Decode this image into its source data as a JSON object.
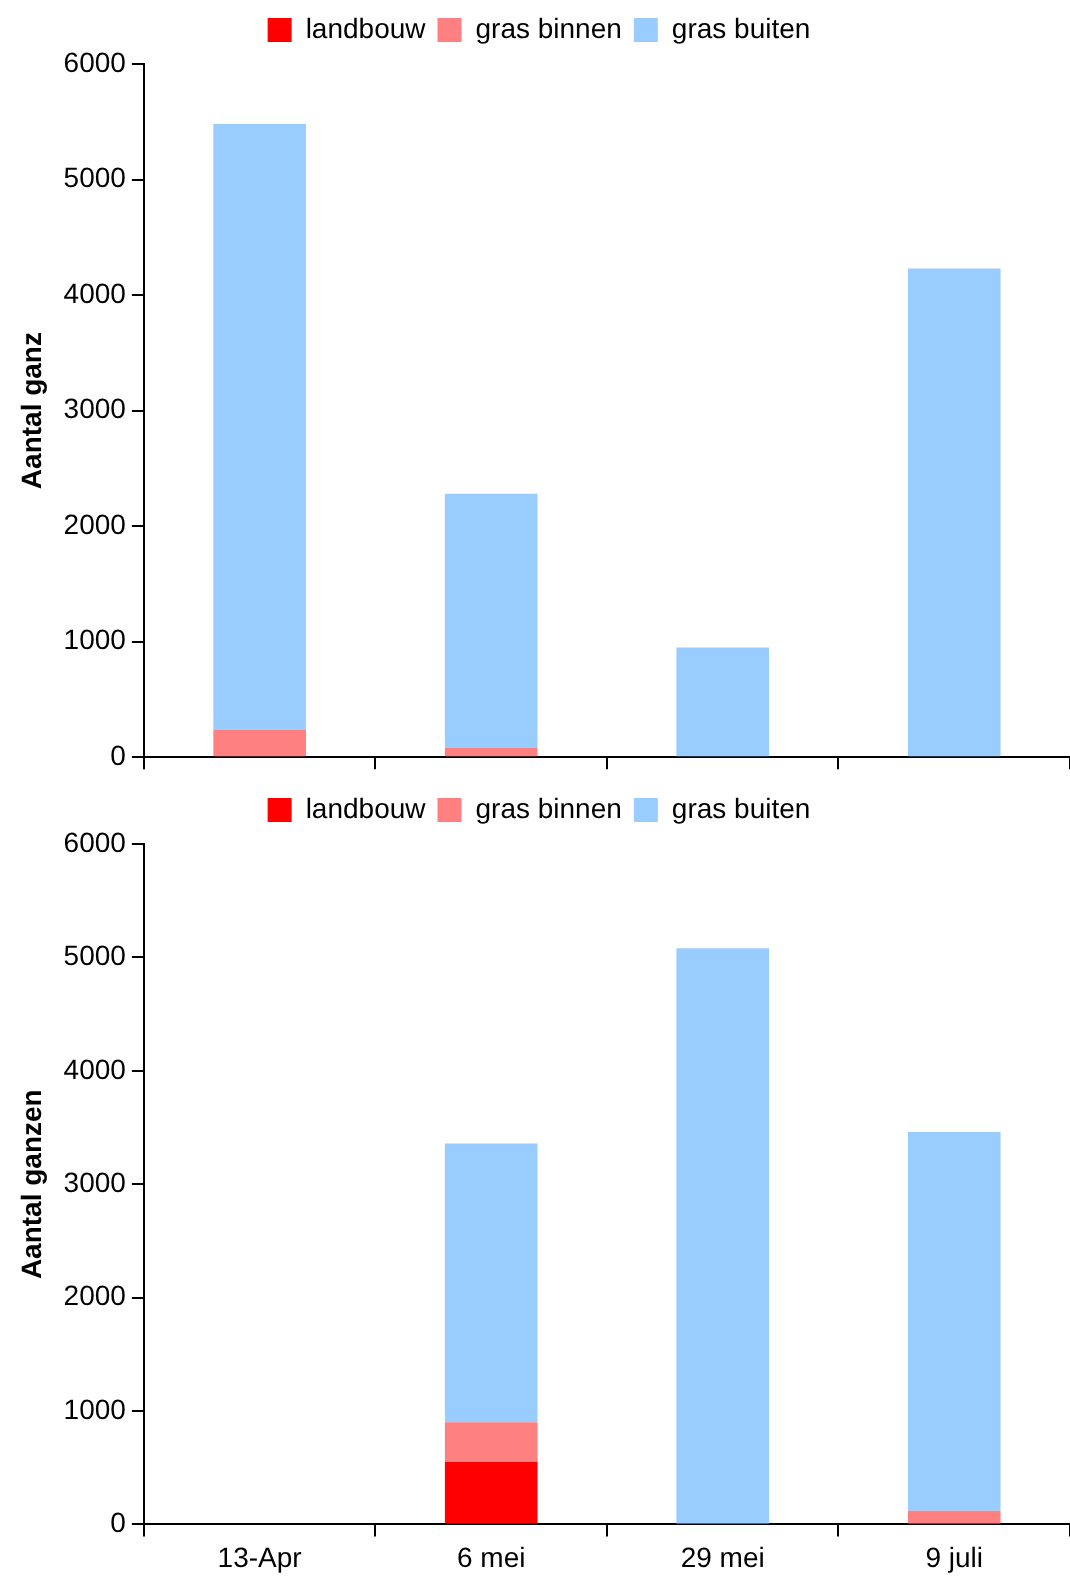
{
  "chart_data": [
    {
      "type": "bar",
      "stacked": true,
      "ylabel": "Aantal ganz",
      "categories": [
        null,
        null,
        null,
        null
      ],
      "series": [
        {
          "name": "landbouw",
          "color": "#ff0000",
          "values": [
            0,
            0,
            0,
            0
          ]
        },
        {
          "name": "gras binnen",
          "color": "#ff8080",
          "values": [
            240,
            80,
            0,
            0
          ]
        },
        {
          "name": "gras buiten",
          "color": "#99ccff",
          "values": [
            5240,
            2200,
            950,
            4230
          ]
        }
      ],
      "ylim": [
        0,
        6000
      ],
      "yticks": [
        0,
        1000,
        2000,
        3000,
        4000,
        5000,
        6000
      ],
      "grid": false,
      "legend": "top",
      "tick_labels": "y"
    },
    {
      "type": "bar",
      "stacked": true,
      "ylabel": "Aantal ganzen",
      "categories": [
        "13-Apr",
        "6 mei",
        "29 mei",
        "9 juli"
      ],
      "series": [
        {
          "name": "landbouw",
          "color": "#ff0000",
          "values": [
            0,
            550,
            0,
            0
          ]
        },
        {
          "name": "gras binnen",
          "color": "#ff8080",
          "values": [
            0,
            350,
            0,
            120
          ]
        },
        {
          "name": "gras buiten",
          "color": "#99ccff",
          "values": [
            0,
            2460,
            5080,
            3340
          ]
        }
      ],
      "ylim": [
        0,
        6000
      ],
      "yticks": [
        0,
        1000,
        2000,
        3000,
        4000,
        5000,
        6000
      ],
      "grid": false,
      "legend": "top"
    }
  ]
}
